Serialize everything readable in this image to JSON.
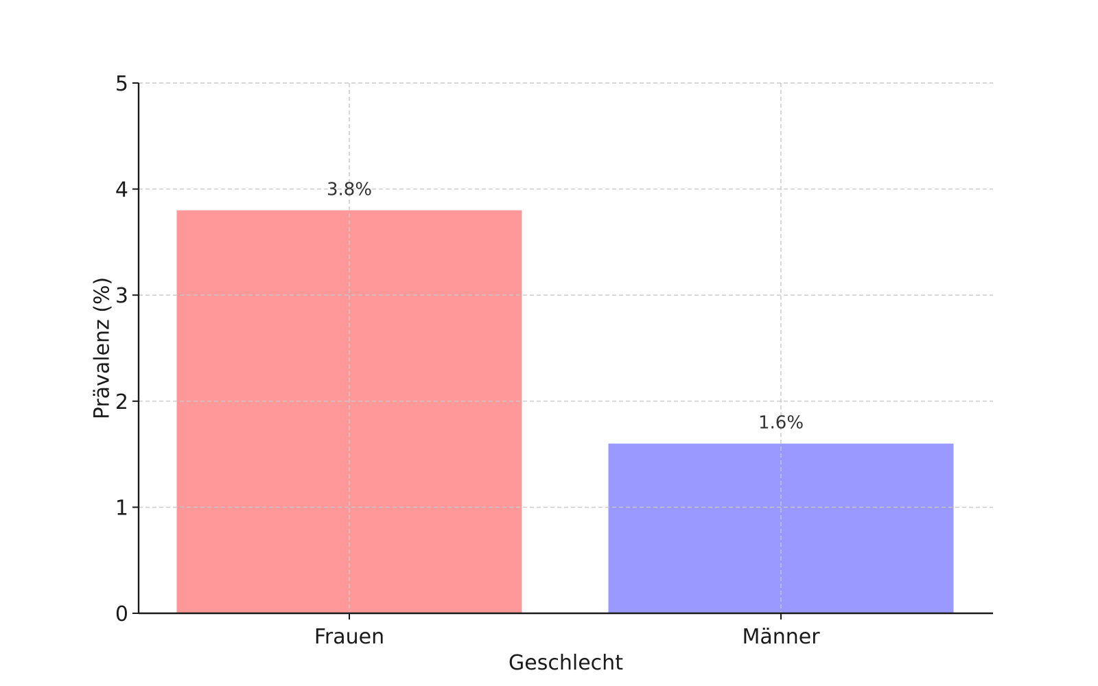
{
  "chart_data": {
    "type": "bar",
    "categories": [
      "Frauen",
      "Männer"
    ],
    "values": [
      3.8,
      1.6
    ],
    "value_labels": [
      "3.8%",
      "1.6%"
    ],
    "colors": [
      "#ff9999",
      "#9999ff"
    ],
    "title": "",
    "xlabel": "Geschlecht",
    "ylabel": "Prävalenz (%)",
    "ylim": [
      0,
      5
    ],
    "yticks": [
      0,
      1,
      2,
      3,
      4,
      5
    ],
    "grid": true,
    "grid_style": "dashed",
    "legend": "none"
  }
}
